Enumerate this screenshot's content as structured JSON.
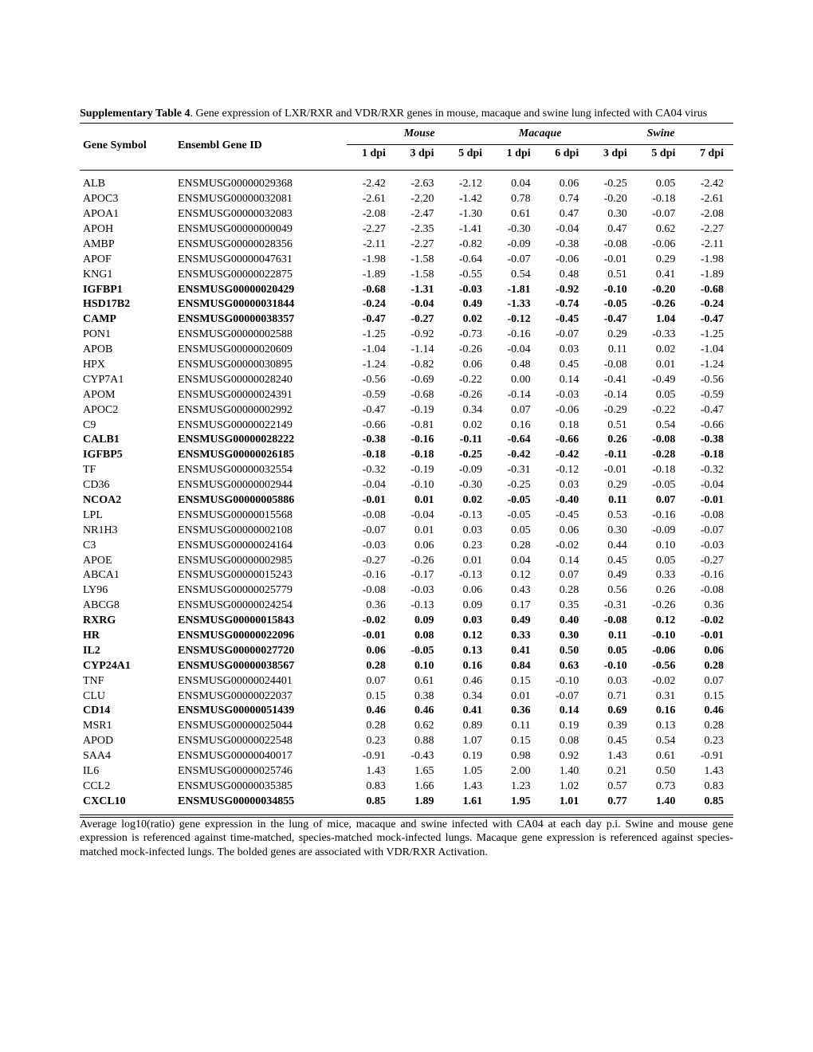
{
  "caption_bold": "Supplementary Table 4",
  "caption_rest": ". Gene expression of LXR/RXR and VDR/RXR genes in mouse, macaque and swine lung infected with CA04 virus",
  "headers": {
    "gene": "Gene Symbol",
    "id": "Ensembl Gene ID",
    "groups": [
      "Mouse",
      "Macaque",
      "Swine"
    ],
    "mouse": [
      "1 dpi",
      "3 dpi",
      "5 dpi"
    ],
    "macaque": [
      "1 dpi",
      "6 dpi"
    ],
    "swine": [
      "3 dpi",
      "5 dpi",
      "7 dpi"
    ]
  },
  "rows": [
    {
      "g": "ALB",
      "id": "ENSMUSG00000029368",
      "v": [
        "-2.42",
        "-2.63",
        "-2.12",
        "0.04",
        "0.06",
        "-0.25",
        "0.05",
        "-2.42"
      ],
      "b": false
    },
    {
      "g": "APOC3",
      "id": "ENSMUSG00000032081",
      "v": [
        "-2.61",
        "-2.20",
        "-1.42",
        "0.78",
        "0.74",
        "-0.20",
        "-0.18",
        "-2.61"
      ],
      "b": false
    },
    {
      "g": "APOA1",
      "id": "ENSMUSG00000032083",
      "v": [
        "-2.08",
        "-2.47",
        "-1.30",
        "0.61",
        "0.47",
        "0.30",
        "-0.07",
        "-2.08"
      ],
      "b": false
    },
    {
      "g": "APOH",
      "id": "ENSMUSG00000000049",
      "v": [
        "-2.27",
        "-2.35",
        "-1.41",
        "-0.30",
        "-0.04",
        "0.47",
        "0.62",
        "-2.27"
      ],
      "b": false
    },
    {
      "g": "AMBP",
      "id": "ENSMUSG00000028356",
      "v": [
        "-2.11",
        "-2.27",
        "-0.82",
        "-0.09",
        "-0.38",
        "-0.08",
        "-0.06",
        "-2.11"
      ],
      "b": false
    },
    {
      "g": "APOF",
      "id": "ENSMUSG00000047631",
      "v": [
        "-1.98",
        "-1.58",
        "-0.64",
        "-0.07",
        "-0.06",
        "-0.01",
        "0.29",
        "-1.98"
      ],
      "b": false
    },
    {
      "g": "KNG1",
      "id": "ENSMUSG00000022875",
      "v": [
        "-1.89",
        "-1.58",
        "-0.55",
        "0.54",
        "0.48",
        "0.51",
        "0.41",
        "-1.89"
      ],
      "b": false
    },
    {
      "g": "IGFBP1",
      "id": "ENSMUSG00000020429",
      "v": [
        "-0.68",
        "-1.31",
        "-0.03",
        "-1.81",
        "-0.92",
        "-0.10",
        "-0.20",
        "-0.68"
      ],
      "b": true
    },
    {
      "g": "HSD17B2",
      "id": "ENSMUSG00000031844",
      "v": [
        "-0.24",
        "-0.04",
        "0.49",
        "-1.33",
        "-0.74",
        "-0.05",
        "-0.26",
        "-0.24"
      ],
      "b": true
    },
    {
      "g": "CAMP",
      "id": "ENSMUSG00000038357",
      "v": [
        "-0.47",
        "-0.27",
        "0.02",
        "-0.12",
        "-0.45",
        "-0.47",
        "1.04",
        "-0.47"
      ],
      "b": true
    },
    {
      "g": "PON1",
      "id": "ENSMUSG00000002588",
      "v": [
        "-1.25",
        "-0.92",
        "-0.73",
        "-0.16",
        "-0.07",
        "0.29",
        "-0.33",
        "-1.25"
      ],
      "b": false
    },
    {
      "g": "APOB",
      "id": "ENSMUSG00000020609",
      "v": [
        "-1.04",
        "-1.14",
        "-0.26",
        "-0.04",
        "0.03",
        "0.11",
        "0.02",
        "-1.04"
      ],
      "b": false
    },
    {
      "g": "HPX",
      "id": "ENSMUSG00000030895",
      "v": [
        "-1.24",
        "-0.82",
        "0.06",
        "0.48",
        "0.45",
        "-0.08",
        "0.01",
        "-1.24"
      ],
      "b": false
    },
    {
      "g": "CYP7A1",
      "id": "ENSMUSG00000028240",
      "v": [
        "-0.56",
        "-0.69",
        "-0.22",
        "0.00",
        "0.14",
        "-0.41",
        "-0.49",
        "-0.56"
      ],
      "b": false
    },
    {
      "g": "APOM",
      "id": "ENSMUSG00000024391",
      "v": [
        "-0.59",
        "-0.68",
        "-0.26",
        "-0.14",
        "-0.03",
        "-0.14",
        "0.05",
        "-0.59"
      ],
      "b": false
    },
    {
      "g": "APOC2",
      "id": "ENSMUSG00000002992",
      "v": [
        "-0.47",
        "-0.19",
        "0.34",
        "0.07",
        "-0.06",
        "-0.29",
        "-0.22",
        "-0.47"
      ],
      "b": false
    },
    {
      "g": "C9",
      "id": "ENSMUSG00000022149",
      "v": [
        "-0.66",
        "-0.81",
        "0.02",
        "0.16",
        "0.18",
        "0.51",
        "0.54",
        "-0.66"
      ],
      "b": false
    },
    {
      "g": "CALB1",
      "id": "ENSMUSG00000028222",
      "v": [
        "-0.38",
        "-0.16",
        "-0.11",
        "-0.64",
        "-0.66",
        "0.26",
        "-0.08",
        "-0.38"
      ],
      "b": true
    },
    {
      "g": "IGFBP5",
      "id": "ENSMUSG00000026185",
      "v": [
        "-0.18",
        "-0.18",
        "-0.25",
        "-0.42",
        "-0.42",
        "-0.11",
        "-0.28",
        "-0.18"
      ],
      "b": true
    },
    {
      "g": "TF",
      "id": "ENSMUSG00000032554",
      "v": [
        "-0.32",
        "-0.19",
        "-0.09",
        "-0.31",
        "-0.12",
        "-0.01",
        "-0.18",
        "-0.32"
      ],
      "b": false
    },
    {
      "g": "CD36",
      "id": "ENSMUSG00000002944",
      "v": [
        "-0.04",
        "-0.10",
        "-0.30",
        "-0.25",
        "0.03",
        "0.29",
        "-0.05",
        "-0.04"
      ],
      "b": false
    },
    {
      "g": "NCOA2",
      "id": "ENSMUSG00000005886",
      "v": [
        "-0.01",
        "0.01",
        "0.02",
        "-0.05",
        "-0.40",
        "0.11",
        "0.07",
        "-0.01"
      ],
      "b": true
    },
    {
      "g": "LPL",
      "id": "ENSMUSG00000015568",
      "v": [
        "-0.08",
        "-0.04",
        "-0.13",
        "-0.05",
        "-0.45",
        "0.53",
        "-0.16",
        "-0.08"
      ],
      "b": false
    },
    {
      "g": "NR1H3",
      "id": "ENSMUSG00000002108",
      "v": [
        "-0.07",
        "0.01",
        "0.03",
        "0.05",
        "0.06",
        "0.30",
        "-0.09",
        "-0.07"
      ],
      "b": false
    },
    {
      "g": "C3",
      "id": "ENSMUSG00000024164",
      "v": [
        "-0.03",
        "0.06",
        "0.23",
        "0.28",
        "-0.02",
        "0.44",
        "0.10",
        "-0.03"
      ],
      "b": false
    },
    {
      "g": "APOE",
      "id": "ENSMUSG00000002985",
      "v": [
        "-0.27",
        "-0.26",
        "0.01",
        "0.04",
        "0.14",
        "0.45",
        "0.05",
        "-0.27"
      ],
      "b": false
    },
    {
      "g": "ABCA1",
      "id": "ENSMUSG00000015243",
      "v": [
        "-0.16",
        "-0.17",
        "-0.13",
        "0.12",
        "0.07",
        "0.49",
        "0.33",
        "-0.16"
      ],
      "b": false
    },
    {
      "g": "LY96",
      "id": "ENSMUSG00000025779",
      "v": [
        "-0.08",
        "-0.03",
        "0.06",
        "0.43",
        "0.28",
        "0.56",
        "0.26",
        "-0.08"
      ],
      "b": false
    },
    {
      "g": "ABCG8",
      "id": "ENSMUSG00000024254",
      "v": [
        "0.36",
        "-0.13",
        "0.09",
        "0.17",
        "0.35",
        "-0.31",
        "-0.26",
        "0.36"
      ],
      "b": false
    },
    {
      "g": "RXRG",
      "id": "ENSMUSG00000015843",
      "v": [
        "-0.02",
        "0.09",
        "0.03",
        "0.49",
        "0.40",
        "-0.08",
        "0.12",
        "-0.02"
      ],
      "b": true
    },
    {
      "g": "HR",
      "id": "ENSMUSG00000022096",
      "v": [
        "-0.01",
        "0.08",
        "0.12",
        "0.33",
        "0.30",
        "0.11",
        "-0.10",
        "-0.01"
      ],
      "b": true
    },
    {
      "g": "IL2",
      "id": "ENSMUSG00000027720",
      "v": [
        "0.06",
        "-0.05",
        "0.13",
        "0.41",
        "0.50",
        "0.05",
        "-0.06",
        "0.06"
      ],
      "b": true
    },
    {
      "g": "CYP24A1",
      "id": "ENSMUSG00000038567",
      "v": [
        "0.28",
        "0.10",
        "0.16",
        "0.84",
        "0.63",
        "-0.10",
        "-0.56",
        "0.28"
      ],
      "b": true
    },
    {
      "g": "TNF",
      "id": "ENSMUSG00000024401",
      "v": [
        "0.07",
        "0.61",
        "0.46",
        "0.15",
        "-0.10",
        "0.03",
        "-0.02",
        "0.07"
      ],
      "b": false
    },
    {
      "g": "CLU",
      "id": "ENSMUSG00000022037",
      "v": [
        "0.15",
        "0.38",
        "0.34",
        "0.01",
        "-0.07",
        "0.71",
        "0.31",
        "0.15"
      ],
      "b": false
    },
    {
      "g": "CD14",
      "id": "ENSMUSG00000051439",
      "v": [
        "0.46",
        "0.46",
        "0.41",
        "0.36",
        "0.14",
        "0.69",
        "0.16",
        "0.46"
      ],
      "b": true
    },
    {
      "g": "MSR1",
      "id": "ENSMUSG00000025044",
      "v": [
        "0.28",
        "0.62",
        "0.89",
        "0.11",
        "0.19",
        "0.39",
        "0.13",
        "0.28"
      ],
      "b": false
    },
    {
      "g": "APOD",
      "id": "ENSMUSG00000022548",
      "v": [
        "0.23",
        "0.88",
        "1.07",
        "0.15",
        "0.08",
        "0.45",
        "0.54",
        "0.23"
      ],
      "b": false
    },
    {
      "g": "SAA4",
      "id": "ENSMUSG00000040017",
      "v": [
        "-0.91",
        "-0.43",
        "0.19",
        "0.98",
        "0.92",
        "1.43",
        "0.61",
        "-0.91"
      ],
      "b": false
    },
    {
      "g": "IL6",
      "id": "ENSMUSG00000025746",
      "v": [
        "1.43",
        "1.65",
        "1.05",
        "2.00",
        "1.40",
        "0.21",
        "0.50",
        "1.43"
      ],
      "b": false
    },
    {
      "g": "CCL2",
      "id": "ENSMUSG00000035385",
      "v": [
        "0.83",
        "1.66",
        "1.43",
        "1.23",
        "1.02",
        "0.57",
        "0.73",
        "0.83"
      ],
      "b": false
    },
    {
      "g": "CXCL10",
      "id": "ENSMUSG00000034855",
      "v": [
        "0.85",
        "1.89",
        "1.61",
        "1.95",
        "1.01",
        "0.77",
        "1.40",
        "0.85"
      ],
      "b": true
    }
  ],
  "footnote": "Average log10(ratio) gene expression in the lung of mice, macaque and swine infected with CA04 at each day p.i. Swine and mouse gene expression is referenced against time-matched, species-matched mock-infected lungs. Macaque gene expression is referenced against species-matched mock-infected lungs. The bolded genes are associated with VDR/RXR Activation."
}
